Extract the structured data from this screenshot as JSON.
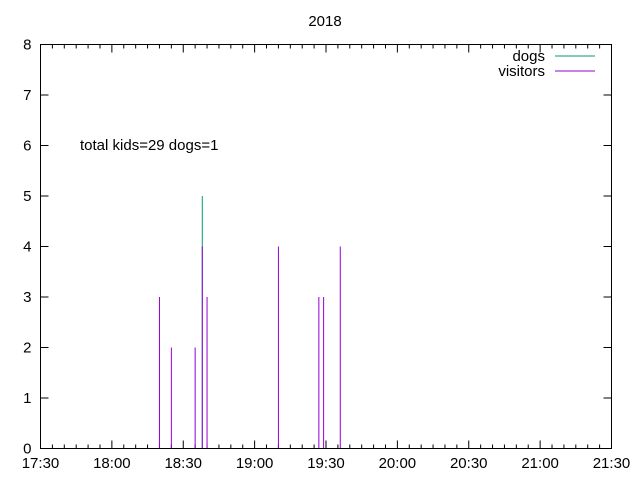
{
  "chart_data": {
    "type": "bar",
    "title": "2018",
    "xlabel": "",
    "ylabel": "",
    "xlim": [
      "17:30",
      "21:30"
    ],
    "ylim": [
      0,
      8
    ],
    "x_ticks": [
      "17:30",
      "18:00",
      "18:30",
      "19:00",
      "19:30",
      "20:00",
      "20:30",
      "21:00",
      "21:30"
    ],
    "y_ticks": [
      "0",
      "1",
      "2",
      "3",
      "4",
      "5",
      "6",
      "7",
      "8"
    ],
    "annotation": "total  kids=29 dogs=1",
    "legend_position": "top-right",
    "grid": false,
    "series": [
      {
        "name": "dogs",
        "color": "#009e73",
        "points": [
          {
            "x": "18:38",
            "y": 5
          }
        ]
      },
      {
        "name": "visitors",
        "color": "#9400d3",
        "points": [
          {
            "x": "18:20",
            "y": 3
          },
          {
            "x": "18:25",
            "y": 2
          },
          {
            "x": "18:35",
            "y": 2
          },
          {
            "x": "18:38",
            "y": 4
          },
          {
            "x": "18:40",
            "y": 3
          },
          {
            "x": "19:10",
            "y": 4
          },
          {
            "x": "19:27",
            "y": 3
          },
          {
            "x": "19:29",
            "y": 3
          },
          {
            "x": "19:36",
            "y": 4
          }
        ]
      }
    ]
  }
}
